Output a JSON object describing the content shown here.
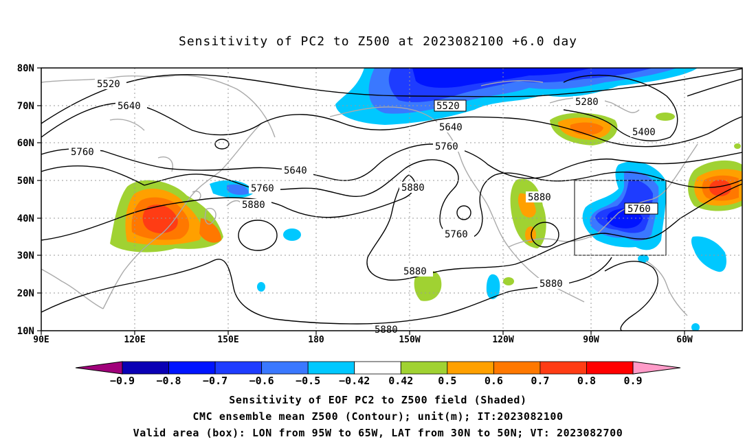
{
  "title": "Sensitivity of PC2 to Z500 at 2023082100 +6.0 day",
  "axes": {
    "lat_labels": [
      "80N",
      "70N",
      "60N",
      "50N",
      "40N",
      "30N",
      "20N",
      "10N"
    ],
    "lon_labels": [
      "90E",
      "120E",
      "150E",
      "180",
      "150W",
      "120W",
      "90W",
      "60W"
    ]
  },
  "contour_labels": [
    "5520",
    "5640",
    "5760",
    "5640",
    "5760",
    "5880",
    "5520",
    "5640",
    "5760",
    "5880",
    "5760",
    "5880",
    "5880",
    "5880",
    "5280",
    "5400",
    "5760",
    "5880"
  ],
  "colorbar": {
    "ticks": [
      "−0.9",
      "−0.8",
      "−0.7",
      "−0.6",
      "−0.5",
      "−0.42",
      "0.42",
      "0.5",
      "0.6",
      "0.7",
      "0.8",
      "0.9"
    ],
    "colors": [
      "#a0007a",
      "#0a00b4",
      "#0014ff",
      "#1e3cff",
      "#3a78ff",
      "#00c8ff",
      "#ffffff",
      "#a0d232",
      "#ffa000",
      "#ff7800",
      "#ff3c14",
      "#ff0000",
      "#ff9bc8"
    ]
  },
  "captions": [
    "Sensitivity of EOF PC2 to Z500 field (Shaded)",
    "CMC ensemble mean Z500 (Contour); unit(m); IT:2023082100",
    "Valid area (box): LON from 95W to 65W, LAT from 30N to 50N; VT: 2023082700"
  ]
}
